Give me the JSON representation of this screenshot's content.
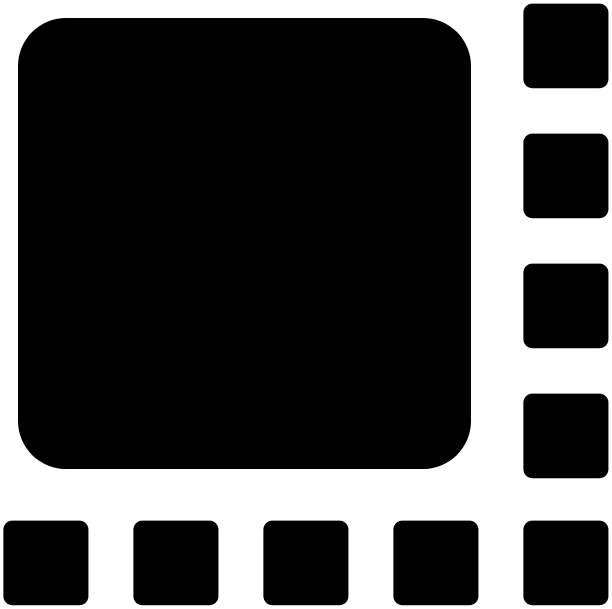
{
  "icon_name": "bar-chart-decrease-trend-icon",
  "main": {
    "frame_color": "#1ba1e8",
    "glyph_color": "#333333"
  },
  "variants": [
    {
      "name": "red",
      "color": "#e0141e"
    },
    {
      "name": "orange",
      "color": "#f26522"
    },
    {
      "name": "pink",
      "color": "#f0609e"
    },
    {
      "name": "lime",
      "color": "#7bc11f"
    },
    {
      "name": "black",
      "color": "#000000"
    },
    {
      "name": "gray",
      "color": "#444444"
    },
    {
      "name": "steel-blue",
      "color": "#336699"
    },
    {
      "name": "blue",
      "color": "#1010e0"
    },
    {
      "name": "green",
      "color": "#0a7a25"
    }
  ]
}
